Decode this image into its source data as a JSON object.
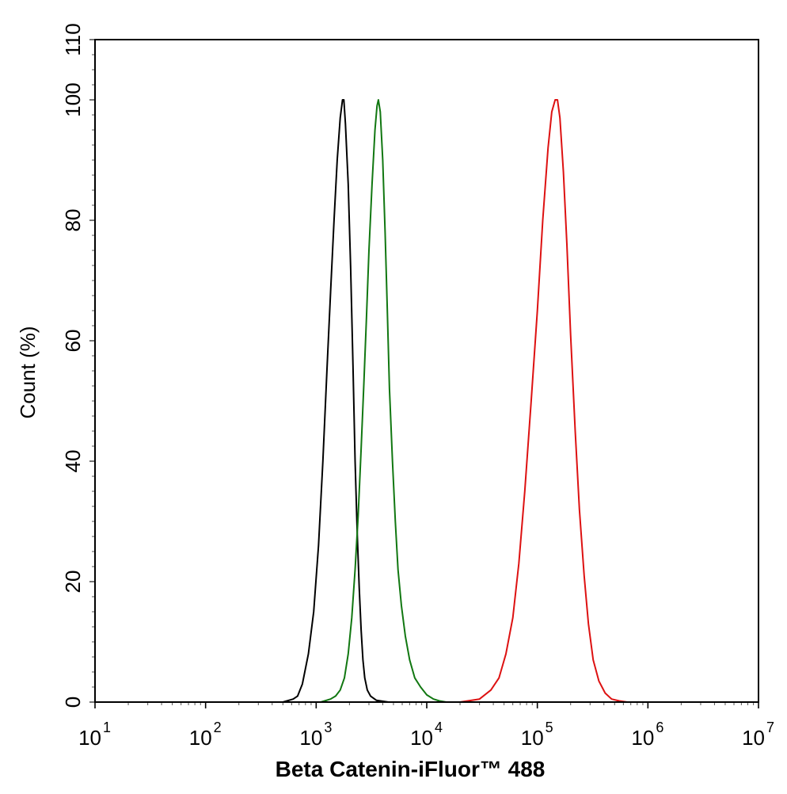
{
  "chart_data": {
    "type": "line",
    "xlabel": "Beta Catenin-iFluor™ 488",
    "ylabel": "Count  (%)",
    "x_scale": "log",
    "xlim": [
      10,
      10000000
    ],
    "ylim": [
      0,
      110
    ],
    "x_ticks": [
      {
        "base": "10",
        "exp": "1",
        "value": 10
      },
      {
        "base": "10",
        "exp": "2",
        "value": 100
      },
      {
        "base": "10",
        "exp": "3",
        "value": 1000
      },
      {
        "base": "10",
        "exp": "4",
        "value": 10000
      },
      {
        "base": "10",
        "exp": "5",
        "value": 100000
      },
      {
        "base": "10",
        "exp": "6",
        "value": 1000000
      },
      {
        "base": "10",
        "exp": "7",
        "value": 10000000
      }
    ],
    "y_ticks": [
      "0",
      "20",
      "40",
      "60",
      "80",
      "100",
      "110"
    ],
    "y_tick_values": [
      0,
      20,
      40,
      60,
      80,
      100,
      110
    ],
    "grid": false,
    "legend": "none",
    "series": [
      {
        "color": "#000000",
        "x": [
          10,
          500,
          620,
          680,
          750,
          850,
          950,
          1050,
          1150,
          1250,
          1350,
          1450,
          1550,
          1650,
          1730,
          1780,
          1840,
          1950,
          2050,
          2150,
          2250,
          2350,
          2450,
          2550,
          2650,
          2750,
          2900,
          3100,
          3500,
          4500,
          10000000
        ],
        "y": [
          0,
          0,
          0.5,
          1,
          3,
          8,
          15,
          26,
          40,
          55,
          68,
          80,
          90,
          97,
          100,
          100,
          96,
          86,
          72,
          56,
          40,
          28,
          19,
          12,
          7,
          4,
          2,
          1,
          0.3,
          0,
          0
        ]
      },
      {
        "color": "#117711",
        "x": [
          10,
          1100,
          1350,
          1500,
          1650,
          1800,
          1950,
          2100,
          2250,
          2400,
          2550,
          2700,
          2850,
          3000,
          3200,
          3400,
          3550,
          3650,
          3800,
          4000,
          4200,
          4400,
          4600,
          4900,
          5200,
          5500,
          5900,
          6400,
          7000,
          7800,
          8800,
          10000,
          11500,
          13000,
          15000,
          10000000
        ],
        "y": [
          0,
          0,
          0.5,
          1,
          2,
          4,
          8,
          14,
          22,
          31,
          42,
          53,
          64,
          75,
          86,
          95,
          99,
          100,
          98,
          90,
          78,
          65,
          52,
          40,
          30,
          22,
          16,
          11,
          7,
          4,
          2.5,
          1.2,
          0.5,
          0.2,
          0,
          0
        ]
      },
      {
        "color": "#dd1111",
        "x": [
          10,
          20000,
          30000,
          38000,
          45000,
          52000,
          60000,
          68000,
          77000,
          88000,
          100000,
          112000,
          125000,
          135000,
          145000,
          152000,
          160000,
          172000,
          185000,
          200000,
          220000,
          240000,
          265000,
          290000,
          320000,
          360000,
          410000,
          470000,
          550000,
          650000,
          10000000
        ],
        "y": [
          0,
          0,
          0.5,
          2,
          4,
          8,
          14,
          23,
          35,
          50,
          65,
          80,
          92,
          98,
          100,
          100,
          97,
          88,
          76,
          61,
          45,
          32,
          21,
          13,
          7,
          3.5,
          1.5,
          0.5,
          0.2,
          0,
          0
        ]
      }
    ]
  }
}
